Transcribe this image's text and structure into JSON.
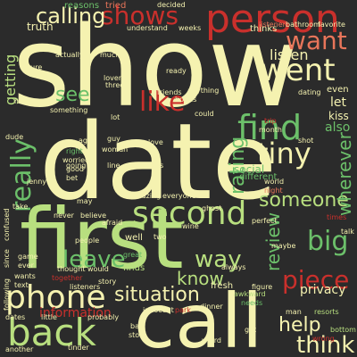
{
  "background": "#2b2b2b",
  "palette": {
    "cream": "#f5f2b0",
    "light_green": "#b8df7f",
    "green": "#6cc06a",
    "dark_green": "#2f9a4f",
    "light_red": "#e8755a",
    "red": "#c9302c",
    "orange": "#f0a060"
  },
  "words": [
    {
      "text": "show",
      "color": "#f5f2b0"
    },
    {
      "text": "date",
      "color": "#f5f2b0"
    },
    {
      "text": "first",
      "color": "#b8df7f"
    },
    {
      "text": "call",
      "color": "#f5f2b0"
    },
    {
      "text": "person",
      "color": "#c9302c"
    },
    {
      "text": "shows",
      "color": "#c9302c"
    },
    {
      "text": "second",
      "color": "#b8df7f"
    },
    {
      "text": "find",
      "color": "#6cc06a"
    },
    {
      "text": "phone",
      "color": "#f5f2b0"
    },
    {
      "text": "back",
      "color": "#b8df7f"
    },
    {
      "text": "want",
      "color": "#e8755a"
    },
    {
      "text": "went",
      "color": "#f5f2b0"
    },
    {
      "text": "like",
      "color": "#c9302c"
    },
    {
      "text": "really",
      "color": "#6cc06a"
    },
    {
      "text": "calling",
      "color": "#f5f2b0"
    },
    {
      "text": "leave",
      "color": "#6cc06a"
    },
    {
      "text": "situation",
      "color": "#f5f2b0"
    },
    {
      "text": "way",
      "color": "#b8df7f"
    },
    {
      "text": "piece",
      "color": "#c9302c"
    },
    {
      "text": "help",
      "color": "#f5f2b0"
    },
    {
      "text": "think",
      "color": "#f5f2b0"
    },
    {
      "text": "tiny",
      "color": "#f5f2b0"
    },
    {
      "text": "big",
      "color": "#6cc06a"
    },
    {
      "text": "someone",
      "color": "#b8df7f"
    },
    {
      "text": "review",
      "color": "#6cc06a"
    },
    {
      "text": "rating",
      "color": "#6cc06a"
    },
    {
      "text": "wherever",
      "color": "#6cc06a"
    },
    {
      "text": "know",
      "color": "#b8df7f"
    },
    {
      "text": "see",
      "color": "#6cc06a"
    },
    {
      "text": "listen",
      "color": "#f5f2b0"
    },
    {
      "text": "getting",
      "color": "#b8df7f"
    },
    {
      "text": "privacy",
      "color": "#f5f2b0"
    },
    {
      "text": "information",
      "color": "#c9302c"
    },
    {
      "text": "truth",
      "color": "#f5f2b0"
    },
    {
      "text": "tried",
      "color": "#e8755a"
    },
    {
      "text": "reasons",
      "color": "#6cc06a"
    },
    {
      "text": "let",
      "color": "#f5f2b0"
    },
    {
      "text": "kiss",
      "color": "#f5f2b0"
    },
    {
      "text": "also",
      "color": "#6cc06a"
    },
    {
      "text": "thinks",
      "color": "#f5f2b0"
    },
    {
      "text": "bathroom",
      "color": "#f5f2b0"
    },
    {
      "text": "favorite",
      "color": "#f5f2b0"
    },
    {
      "text": "listener",
      "color": "#e8755a"
    },
    {
      "text": "dating",
      "color": "#f5f2b0"
    },
    {
      "text": "even",
      "color": "#f5f2b0"
    },
    {
      "text": "social",
      "color": "#6cc06a"
    },
    {
      "text": "different",
      "color": "#6cc06a"
    },
    {
      "text": "world",
      "color": "#f5f2b0"
    },
    {
      "text": "night",
      "color": "#e8755a"
    },
    {
      "text": "perfect",
      "color": "#f5f2b0"
    },
    {
      "text": "times",
      "color": "#c9302c"
    },
    {
      "text": "talk",
      "color": "#f5f2b0"
    },
    {
      "text": "maybe",
      "color": "#f5f2b0"
    },
    {
      "text": "resorts",
      "color": "#b8df7f"
    },
    {
      "text": "man",
      "color": "#f5f2b0"
    },
    {
      "text": "wrong",
      "color": "#c9302c"
    },
    {
      "text": "bottom",
      "color": "#b8df7f"
    },
    {
      "text": "needs",
      "color": "#6cc06a"
    },
    {
      "text": "figure",
      "color": "#f5f2b0"
    },
    {
      "text": "awkward",
      "color": "#b8df7f"
    },
    {
      "text": "fresh",
      "color": "#f5f2b0"
    },
    {
      "text": "always",
      "color": "#f5f2b0"
    },
    {
      "text": "dinner",
      "color": "#f5f2b0"
    },
    {
      "text": "innocent",
      "color": "#f5f2b0"
    },
    {
      "text": "park",
      "color": "#c9302c"
    },
    {
      "text": "weird",
      "color": "#f5f2b0"
    },
    {
      "text": "got",
      "color": "#f5f2b0"
    },
    {
      "text": "store",
      "color": "#f5f2b0"
    },
    {
      "text": "bad",
      "color": "#f5f2b0"
    },
    {
      "text": "probably",
      "color": "#f5f2b0"
    },
    {
      "text": "tinder",
      "color": "#f5f2b0"
    },
    {
      "text": "another",
      "color": "#f5f2b0"
    },
    {
      "text": "dates",
      "color": "#f5f2b0"
    },
    {
      "text": "little",
      "color": "#f5f2b0"
    },
    {
      "text": "listeners",
      "color": "#f5f2b0"
    },
    {
      "text": "story",
      "color": "#f5f2b0"
    },
    {
      "text": "thought",
      "color": "#f5f2b0"
    },
    {
      "text": "would",
      "color": "#f5f2b0"
    },
    {
      "text": "people",
      "color": "#f5f2b0"
    },
    {
      "text": "together",
      "color": "#c9302c"
    },
    {
      "text": "wants",
      "color": "#f5f2b0"
    },
    {
      "text": "text",
      "color": "#f5f2b0"
    },
    {
      "text": "game",
      "color": "#f5f2b0"
    },
    {
      "text": "ever",
      "color": "#f5f2b0"
    },
    {
      "text": "since",
      "color": "#f5f2b0"
    },
    {
      "text": "confused",
      "color": "#f5f2b0"
    },
    {
      "text": "following",
      "color": "#f5f2b0"
    },
    {
      "text": "take",
      "color": "#f5f2b0"
    },
    {
      "text": "may",
      "color": "#f5f2b0"
    },
    {
      "text": "never",
      "color": "#f5f2b0"
    },
    {
      "text": "believe",
      "color": "#f5f2b0"
    },
    {
      "text": "afraid",
      "color": "#f5f2b0"
    },
    {
      "text": "great",
      "color": "#6cc06a"
    },
    {
      "text": "finds",
      "color": "#b8df7f"
    },
    {
      "text": "well",
      "color": "#f5f2b0"
    },
    {
      "text": "two",
      "color": "#f5f2b0"
    },
    {
      "text": "wine",
      "color": "#f5f2b0"
    },
    {
      "text": "ghost",
      "color": "#f5f2b0"
    },
    {
      "text": "amazing",
      "color": "#f5f2b0"
    },
    {
      "text": "everyone",
      "color": "#f5f2b0"
    },
    {
      "text": "going",
      "color": "#f5f2b0"
    },
    {
      "text": "good",
      "color": "#f5f2b0"
    },
    {
      "text": "bet",
      "color": "#f5f2b0"
    },
    {
      "text": "worried",
      "color": "#f5f2b0"
    },
    {
      "text": "right",
      "color": "#6cc06a"
    },
    {
      "text": "ago",
      "color": "#f5f2b0"
    },
    {
      "text": "guy",
      "color": "#f5f2b0"
    },
    {
      "text": "love",
      "color": "#f5f2b0"
    },
    {
      "text": "woman",
      "color": "#f5f2b0"
    },
    {
      "text": "line",
      "color": "#f5f2b0"
    },
    {
      "text": "ends",
      "color": "#f5f2b0"
    },
    {
      "text": "friends",
      "color": "#f5f2b0"
    },
    {
      "text": "hotels",
      "color": "#f5f2b0"
    },
    {
      "text": "lot",
      "color": "#f5f2b0"
    },
    {
      "text": "could",
      "color": "#f5f2b0"
    },
    {
      "text": "something",
      "color": "#f5f2b0"
    },
    {
      "text": "lover",
      "color": "#f5f2b0"
    },
    {
      "text": "three",
      "color": "#f5f2b0"
    },
    {
      "text": "ready",
      "color": "#f5f2b0"
    },
    {
      "text": "much",
      "color": "#f5f2b0"
    },
    {
      "text": "actually",
      "color": "#f5f2b0"
    },
    {
      "text": "sure",
      "color": "#f5f2b0"
    },
    {
      "text": "days",
      "color": "#f5f2b0"
    },
    {
      "text": "however",
      "color": "#f5f2b0"
    },
    {
      "text": "understand",
      "color": "#f5f2b0"
    },
    {
      "text": "weeks",
      "color": "#f5f2b0"
    },
    {
      "text": "decided",
      "color": "#f5f2b0"
    },
    {
      "text": "trip",
      "color": "#c9302c"
    },
    {
      "text": "month",
      "color": "#f5f2b0"
    },
    {
      "text": "shot",
      "color": "#f5f2b0"
    },
    {
      "text": "dude",
      "color": "#f5f2b0"
    },
    {
      "text": "jenny",
      "color": "#f5f2b0"
    },
    {
      "text": "anything",
      "color": "#f5f2b0"
    }
  ]
}
